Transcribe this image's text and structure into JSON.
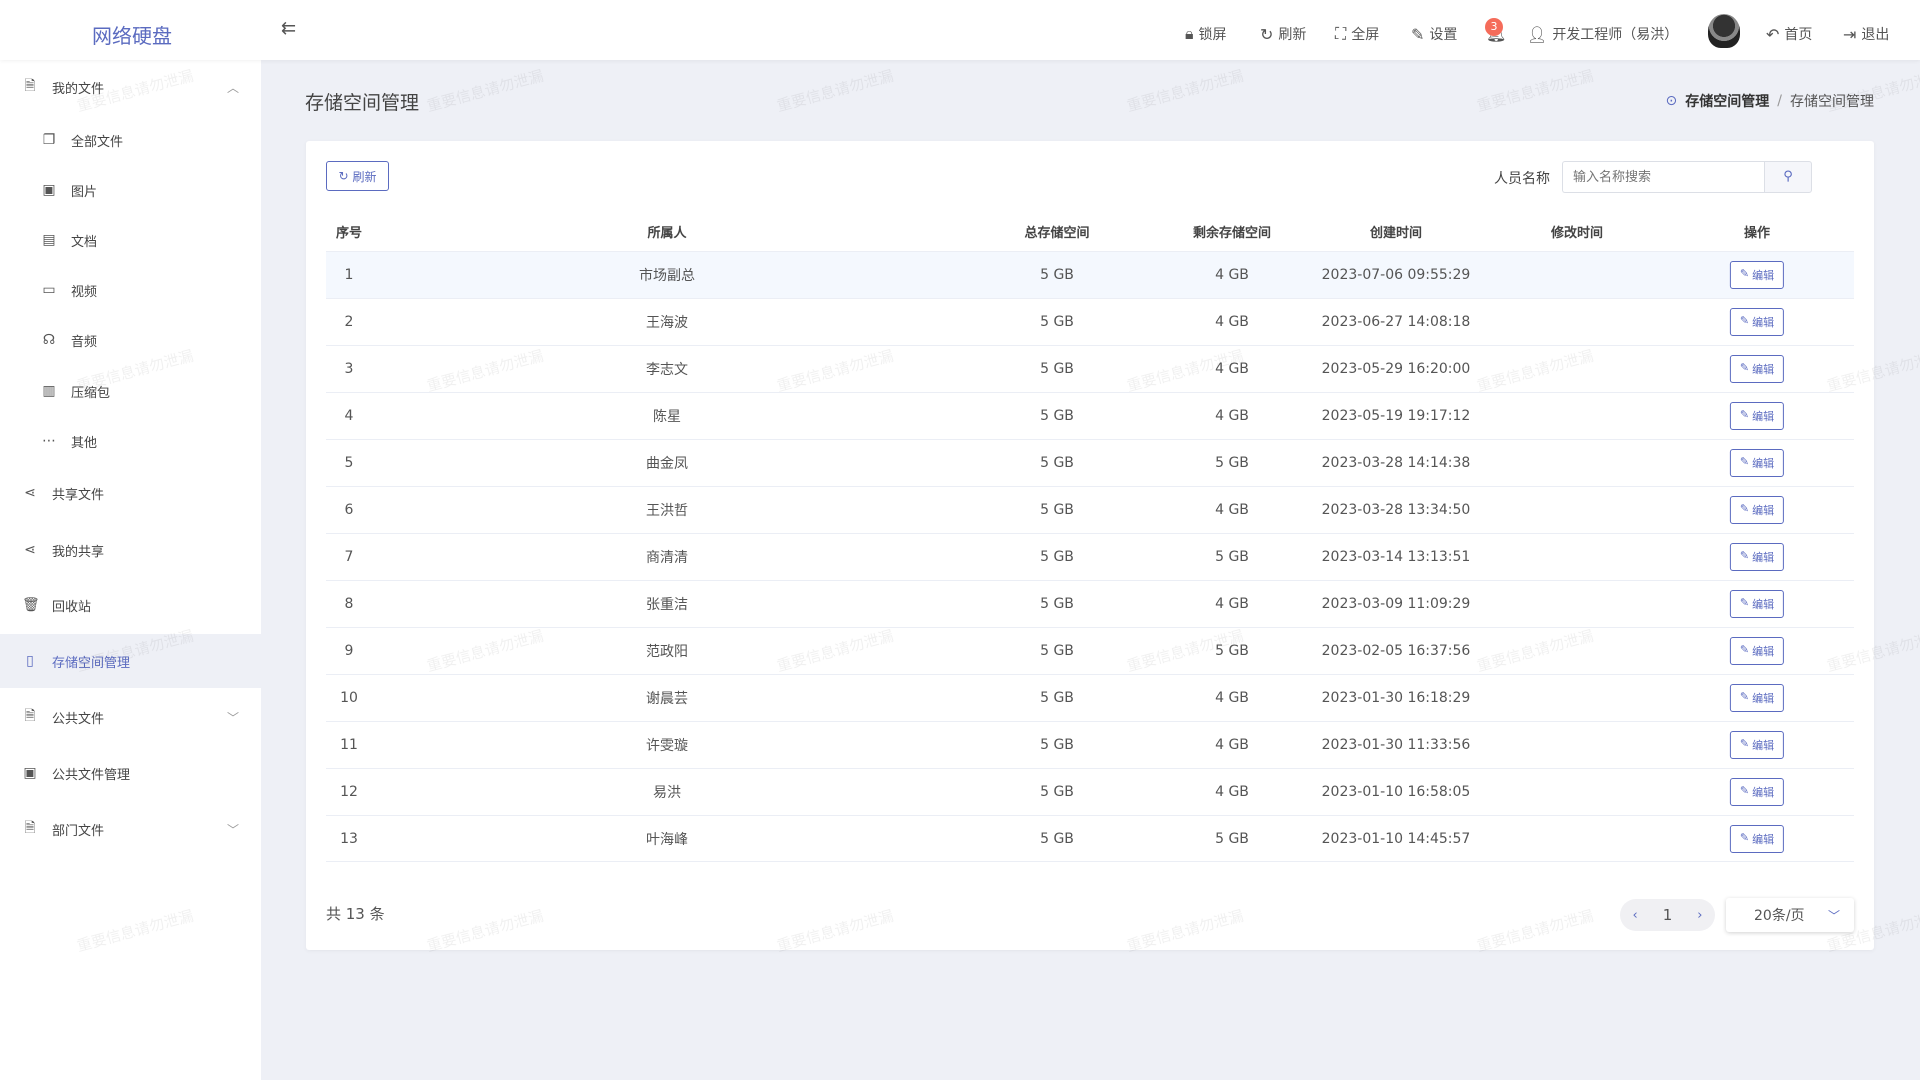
{
  "app": {
    "logo": "网络硬盘",
    "watermark": "重要信息请勿泄漏"
  },
  "header": {
    "items": [
      {
        "icon": "lock-icon",
        "label": "锁屏"
      },
      {
        "icon": "refresh-icon",
        "label": "刷新"
      },
      {
        "icon": "fullscreen-icon",
        "label": "全屏"
      },
      {
        "icon": "settings-icon",
        "label": "设置"
      }
    ],
    "notify_count": "3",
    "user": "开发工程师（易洪）",
    "home": "首页",
    "logout": "退出"
  },
  "sidebar": {
    "items": [
      {
        "label": "我的文件",
        "icon": "file-icon",
        "chev": "up"
      },
      {
        "label": "全部文件",
        "icon": "files-icon",
        "sub": true
      },
      {
        "label": "图片",
        "icon": "image-icon",
        "sub": true
      },
      {
        "label": "文档",
        "icon": "document-icon",
        "sub": true
      },
      {
        "label": "视频",
        "icon": "video-icon",
        "sub": true
      },
      {
        "label": "音频",
        "icon": "headphones-icon",
        "sub": true
      },
      {
        "label": "压缩包",
        "icon": "archive-icon",
        "sub": true
      },
      {
        "label": "其他",
        "icon": "more-icon",
        "sub": true
      },
      {
        "label": "共享文件",
        "icon": "share-icon"
      },
      {
        "label": "我的共享",
        "icon": "share-icon"
      },
      {
        "label": "回收站",
        "icon": "trash-icon"
      },
      {
        "label": "存储空间管理",
        "icon": "sd-card-icon",
        "active": true
      },
      {
        "label": "公共文件",
        "icon": "file-icon",
        "chev": "down"
      },
      {
        "label": "公共文件管理",
        "icon": "folder-icon"
      },
      {
        "label": "部门文件",
        "icon": "file-icon",
        "chev": "down"
      }
    ]
  },
  "page": {
    "title": "存储空间管理",
    "breadcrumb": [
      "存储空间管理",
      "存储空间管理"
    ],
    "refresh": "刷新",
    "search_label": "人员名称",
    "search_placeholder": "输入名称搜索",
    "columns": [
      "序号",
      "所属人",
      "总存储空间",
      "剩余存储空间",
      "创建时间",
      "修改时间",
      "操作"
    ],
    "edit_label": "编辑",
    "rows": [
      [
        "1",
        "市场副总",
        "5 GB",
        "4 GB",
        "2023-07-06 09:55:29",
        ""
      ],
      [
        "2",
        "王海波",
        "5 GB",
        "4 GB",
        "2023-06-27 14:08:18",
        ""
      ],
      [
        "3",
        "李志文",
        "5 GB",
        "4 GB",
        "2023-05-29 16:20:00",
        ""
      ],
      [
        "4",
        "陈星",
        "5 GB",
        "4 GB",
        "2023-05-19 19:17:12",
        ""
      ],
      [
        "5",
        "曲金凤",
        "5 GB",
        "5 GB",
        "2023-03-28 14:14:38",
        ""
      ],
      [
        "6",
        "王洪哲",
        "5 GB",
        "4 GB",
        "2023-03-28 13:34:50",
        ""
      ],
      [
        "7",
        "商清清",
        "5 GB",
        "5 GB",
        "2023-03-14 13:13:51",
        ""
      ],
      [
        "8",
        "张重洁",
        "5 GB",
        "4 GB",
        "2023-03-09 11:09:29",
        ""
      ],
      [
        "9",
        "范政阳",
        "5 GB",
        "5 GB",
        "2023-02-05 16:37:56",
        ""
      ],
      [
        "10",
        "谢晨芸",
        "5 GB",
        "4 GB",
        "2023-01-30 16:18:29",
        ""
      ],
      [
        "11",
        "许雯璇",
        "5 GB",
        "4 GB",
        "2023-01-30 11:33:56",
        ""
      ],
      [
        "12",
        "易洪",
        "5 GB",
        "4 GB",
        "2023-01-10 16:58:05",
        ""
      ],
      [
        "13",
        "叶海峰",
        "5 GB",
        "5 GB",
        "2023-01-10 14:45:57",
        ""
      ]
    ],
    "total": "共 13 条",
    "current_page": "1",
    "page_size": "20条/页"
  },
  "colors": {
    "accent": "#5b6bc0",
    "badge": "#f56c5a",
    "bg": "#eef0f6"
  }
}
